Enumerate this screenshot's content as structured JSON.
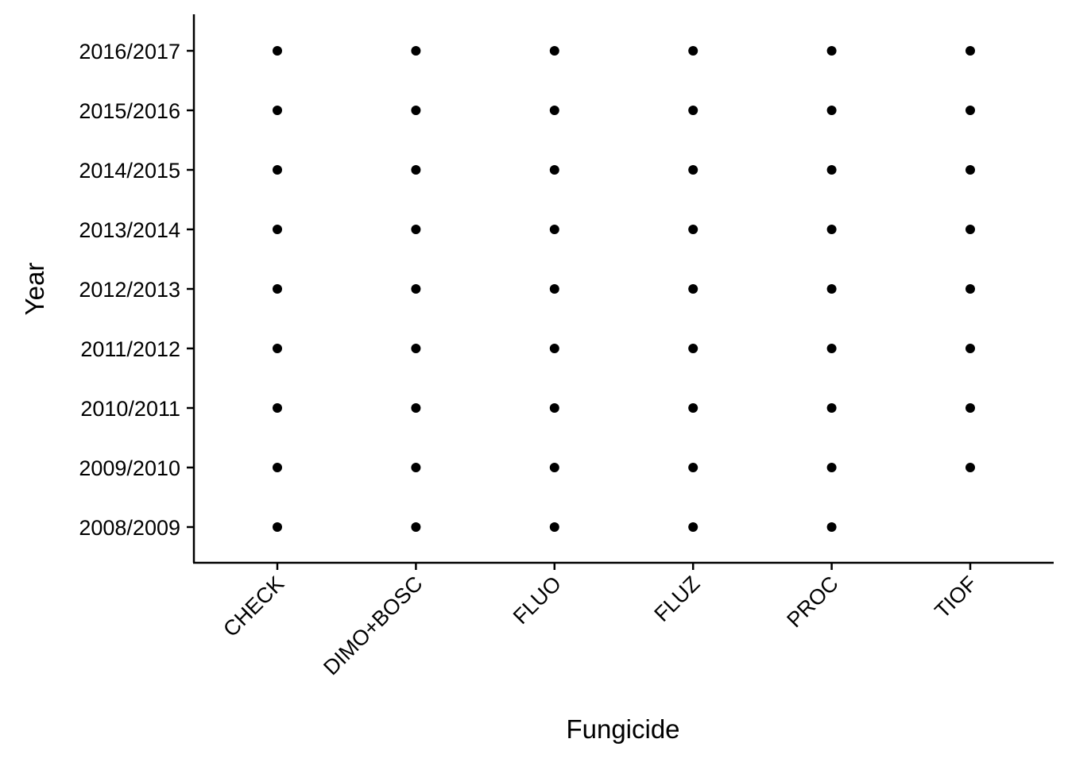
{
  "chart_data": {
    "type": "scatter",
    "title": "",
    "xlabel": "Fungicide",
    "ylabel": "Year",
    "x_categories": [
      "CHECK",
      "DIMO+BOSC",
      "FLUO",
      "FLUZ",
      "PROC",
      "TIOF"
    ],
    "y_categories": [
      "2008/2009",
      "2009/2010",
      "2010/2011",
      "2011/2012",
      "2012/2013",
      "2013/2014",
      "2014/2015",
      "2015/2016",
      "2016/2017"
    ],
    "points": [
      {
        "x": "CHECK",
        "y": "2008/2009"
      },
      {
        "x": "CHECK",
        "y": "2009/2010"
      },
      {
        "x": "CHECK",
        "y": "2010/2011"
      },
      {
        "x": "CHECK",
        "y": "2011/2012"
      },
      {
        "x": "CHECK",
        "y": "2012/2013"
      },
      {
        "x": "CHECK",
        "y": "2013/2014"
      },
      {
        "x": "CHECK",
        "y": "2014/2015"
      },
      {
        "x": "CHECK",
        "y": "2015/2016"
      },
      {
        "x": "CHECK",
        "y": "2016/2017"
      },
      {
        "x": "DIMO+BOSC",
        "y": "2008/2009"
      },
      {
        "x": "DIMO+BOSC",
        "y": "2009/2010"
      },
      {
        "x": "DIMO+BOSC",
        "y": "2010/2011"
      },
      {
        "x": "DIMO+BOSC",
        "y": "2011/2012"
      },
      {
        "x": "DIMO+BOSC",
        "y": "2012/2013"
      },
      {
        "x": "DIMO+BOSC",
        "y": "2013/2014"
      },
      {
        "x": "DIMO+BOSC",
        "y": "2014/2015"
      },
      {
        "x": "DIMO+BOSC",
        "y": "2015/2016"
      },
      {
        "x": "DIMO+BOSC",
        "y": "2016/2017"
      },
      {
        "x": "FLUO",
        "y": "2008/2009"
      },
      {
        "x": "FLUO",
        "y": "2009/2010"
      },
      {
        "x": "FLUO",
        "y": "2010/2011"
      },
      {
        "x": "FLUO",
        "y": "2011/2012"
      },
      {
        "x": "FLUO",
        "y": "2012/2013"
      },
      {
        "x": "FLUO",
        "y": "2013/2014"
      },
      {
        "x": "FLUO",
        "y": "2014/2015"
      },
      {
        "x": "FLUO",
        "y": "2015/2016"
      },
      {
        "x": "FLUO",
        "y": "2016/2017"
      },
      {
        "x": "FLUZ",
        "y": "2008/2009"
      },
      {
        "x": "FLUZ",
        "y": "2009/2010"
      },
      {
        "x": "FLUZ",
        "y": "2010/2011"
      },
      {
        "x": "FLUZ",
        "y": "2011/2012"
      },
      {
        "x": "FLUZ",
        "y": "2012/2013"
      },
      {
        "x": "FLUZ",
        "y": "2013/2014"
      },
      {
        "x": "FLUZ",
        "y": "2014/2015"
      },
      {
        "x": "FLUZ",
        "y": "2015/2016"
      },
      {
        "x": "FLUZ",
        "y": "2016/2017"
      },
      {
        "x": "PROC",
        "y": "2008/2009"
      },
      {
        "x": "PROC",
        "y": "2009/2010"
      },
      {
        "x": "PROC",
        "y": "2010/2011"
      },
      {
        "x": "PROC",
        "y": "2011/2012"
      },
      {
        "x": "PROC",
        "y": "2012/2013"
      },
      {
        "x": "PROC",
        "y": "2013/2014"
      },
      {
        "x": "PROC",
        "y": "2014/2015"
      },
      {
        "x": "PROC",
        "y": "2015/2016"
      },
      {
        "x": "PROC",
        "y": "2016/2017"
      },
      {
        "x": "TIOF",
        "y": "2009/2010"
      },
      {
        "x": "TIOF",
        "y": "2010/2011"
      },
      {
        "x": "TIOF",
        "y": "2011/2012"
      },
      {
        "x": "TIOF",
        "y": "2012/2013"
      },
      {
        "x": "TIOF",
        "y": "2013/2014"
      },
      {
        "x": "TIOF",
        "y": "2014/2015"
      },
      {
        "x": "TIOF",
        "y": "2015/2016"
      },
      {
        "x": "TIOF",
        "y": "2016/2017"
      }
    ],
    "grid": false,
    "legend": "none",
    "point_color": "#000000"
  }
}
